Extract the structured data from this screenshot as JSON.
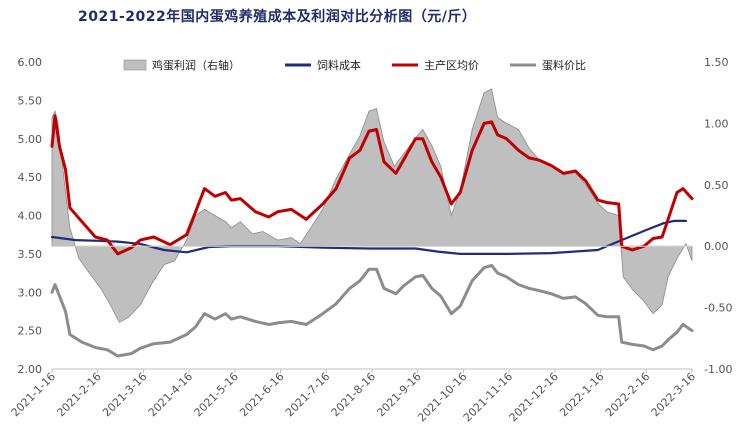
{
  "chart_data": {
    "type": "line",
    "title": "2021-2022年国内蛋鸡养殖成本及利润对比分析图（元/斤）",
    "x_labels": [
      "2021-1-16",
      "2021-2-16",
      "2021-3-16",
      "2021-4-16",
      "2021-5-16",
      "2021-6-16",
      "2021-7-16",
      "2021-8-16",
      "2021-9-16",
      "2021-10-16",
      "2021-11-16",
      "2021-12-16",
      "2022-1-16",
      "2022-2-16",
      "2022-3-16"
    ],
    "y_left": {
      "min": 2.0,
      "max": 6.0,
      "ticks": [
        "2.00",
        "2.50",
        "3.00",
        "3.50",
        "4.00",
        "4.50",
        "5.00",
        "5.50",
        "6.00"
      ]
    },
    "y_right": {
      "min": -1.0,
      "max": 1.5,
      "ticks": [
        "-1.00",
        "-0.50",
        "0.00",
        "0.50",
        "1.00",
        "1.50"
      ]
    },
    "grid": false,
    "legend_position": "top",
    "x_date_range": [
      "2021-01-16",
      "2022-03-20"
    ],
    "series": [
      {
        "name": "鸡蛋利润（右轴）",
        "axis": "right",
        "kind": "area",
        "color": "#bfbfbf",
        "stroke": "#8c8c8c",
        "points": [
          [
            "2021-01-16",
            1.05
          ],
          [
            "2021-01-18",
            1.1
          ],
          [
            "2021-01-20",
            1.0
          ],
          [
            "2021-01-24",
            0.55
          ],
          [
            "2021-01-28",
            0.15
          ],
          [
            "2021-02-03",
            -0.1
          ],
          [
            "2021-02-10",
            -0.22
          ],
          [
            "2021-02-18",
            -0.35
          ],
          [
            "2021-02-25",
            -0.5
          ],
          [
            "2021-03-02",
            -0.62
          ],
          [
            "2021-03-08",
            -0.58
          ],
          [
            "2021-03-16",
            -0.48
          ],
          [
            "2021-03-24",
            -0.3
          ],
          [
            "2021-04-01",
            -0.15
          ],
          [
            "2021-04-08",
            -0.12
          ],
          [
            "2021-04-16",
            0.05
          ],
          [
            "2021-04-22",
            0.25
          ],
          [
            "2021-04-28",
            0.3
          ],
          [
            "2021-05-05",
            0.25
          ],
          [
            "2021-05-12",
            0.2
          ],
          [
            "2021-05-16",
            0.15
          ],
          [
            "2021-05-22",
            0.2
          ],
          [
            "2021-05-30",
            0.1
          ],
          [
            "2021-06-06",
            0.12
          ],
          [
            "2021-06-16",
            0.05
          ],
          [
            "2021-06-25",
            0.07
          ],
          [
            "2021-07-01",
            0.02
          ],
          [
            "2021-07-08",
            0.15
          ],
          [
            "2021-07-16",
            0.3
          ],
          [
            "2021-07-25",
            0.55
          ],
          [
            "2021-08-03",
            0.75
          ],
          [
            "2021-08-10",
            0.9
          ],
          [
            "2021-08-16",
            1.1
          ],
          [
            "2021-08-21",
            1.12
          ],
          [
            "2021-08-26",
            0.85
          ],
          [
            "2021-09-02",
            0.65
          ],
          [
            "2021-09-08",
            0.75
          ],
          [
            "2021-09-16",
            0.88
          ],
          [
            "2021-09-21",
            0.95
          ],
          [
            "2021-09-27",
            0.82
          ],
          [
            "2021-10-03",
            0.65
          ],
          [
            "2021-10-10",
            0.25
          ],
          [
            "2021-10-16",
            0.45
          ],
          [
            "2021-10-24",
            0.95
          ],
          [
            "2021-11-01",
            1.25
          ],
          [
            "2021-11-06",
            1.28
          ],
          [
            "2021-11-10",
            1.05
          ],
          [
            "2021-11-16",
            1.0
          ],
          [
            "2021-11-24",
            0.95
          ],
          [
            "2021-12-01",
            0.8
          ],
          [
            "2021-12-08",
            0.7
          ],
          [
            "2021-12-16",
            0.65
          ],
          [
            "2021-12-24",
            0.58
          ],
          [
            "2022-01-01",
            0.6
          ],
          [
            "2022-01-08",
            0.5
          ],
          [
            "2022-01-16",
            0.35
          ],
          [
            "2022-01-22",
            0.28
          ],
          [
            "2022-01-30",
            0.25
          ],
          [
            "2022-02-02",
            -0.25
          ],
          [
            "2022-02-08",
            -0.35
          ],
          [
            "2022-02-16",
            -0.45
          ],
          [
            "2022-02-22",
            -0.55
          ],
          [
            "2022-02-28",
            -0.48
          ],
          [
            "2022-03-04",
            -0.25
          ],
          [
            "2022-03-10",
            -0.1
          ],
          [
            "2022-03-16",
            0.02
          ],
          [
            "2022-03-20",
            -0.12
          ]
        ]
      },
      {
        "name": "饲料成本",
        "axis": "left",
        "kind": "line",
        "color": "#1f2d7a",
        "points": [
          [
            "2021-01-16",
            3.72
          ],
          [
            "2021-02-01",
            3.68
          ],
          [
            "2021-02-16",
            3.67
          ],
          [
            "2021-03-01",
            3.66
          ],
          [
            "2021-03-16",
            3.63
          ],
          [
            "2021-04-01",
            3.55
          ],
          [
            "2021-04-16",
            3.52
          ],
          [
            "2021-05-01",
            3.59
          ],
          [
            "2021-05-16",
            3.6
          ],
          [
            "2021-06-16",
            3.6
          ],
          [
            "2021-07-16",
            3.58
          ],
          [
            "2021-08-16",
            3.57
          ],
          [
            "2021-09-16",
            3.57
          ],
          [
            "2021-10-01",
            3.53
          ],
          [
            "2021-10-16",
            3.5
          ],
          [
            "2021-11-16",
            3.5
          ],
          [
            "2021-12-16",
            3.51
          ],
          [
            "2022-01-16",
            3.55
          ],
          [
            "2022-02-16",
            3.8
          ],
          [
            "2022-03-01",
            3.9
          ],
          [
            "2022-03-08",
            3.93
          ],
          [
            "2022-03-16",
            3.93
          ]
        ]
      },
      {
        "name": "主产区均价",
        "axis": "left",
        "kind": "line",
        "color": "#c00000",
        "points": [
          [
            "2021-01-16",
            4.9
          ],
          [
            "2021-01-18",
            5.3
          ],
          [
            "2021-01-21",
            4.9
          ],
          [
            "2021-01-25",
            4.6
          ],
          [
            "2021-01-28",
            4.1
          ],
          [
            "2021-02-05",
            3.92
          ],
          [
            "2021-02-14",
            3.72
          ],
          [
            "2021-02-22",
            3.68
          ],
          [
            "2021-03-01",
            3.5
          ],
          [
            "2021-03-10",
            3.58
          ],
          [
            "2021-03-16",
            3.68
          ],
          [
            "2021-03-25",
            3.72
          ],
          [
            "2021-04-05",
            3.62
          ],
          [
            "2021-04-16",
            3.75
          ],
          [
            "2021-04-22",
            4.05
          ],
          [
            "2021-04-28",
            4.35
          ],
          [
            "2021-05-05",
            4.25
          ],
          [
            "2021-05-12",
            4.3
          ],
          [
            "2021-05-16",
            4.2
          ],
          [
            "2021-05-22",
            4.22
          ],
          [
            "2021-06-01",
            4.05
          ],
          [
            "2021-06-10",
            3.98
          ],
          [
            "2021-06-16",
            4.05
          ],
          [
            "2021-06-25",
            4.08
          ],
          [
            "2021-07-05",
            3.95
          ],
          [
            "2021-07-16",
            4.15
          ],
          [
            "2021-07-25",
            4.35
          ],
          [
            "2021-08-03",
            4.75
          ],
          [
            "2021-08-10",
            4.85
          ],
          [
            "2021-08-16",
            5.1
          ],
          [
            "2021-08-21",
            5.12
          ],
          [
            "2021-08-26",
            4.7
          ],
          [
            "2021-09-03",
            4.55
          ],
          [
            "2021-09-08",
            4.72
          ],
          [
            "2021-09-16",
            5.0
          ],
          [
            "2021-09-21",
            5.0
          ],
          [
            "2021-09-27",
            4.7
          ],
          [
            "2021-10-03",
            4.5
          ],
          [
            "2021-10-10",
            4.15
          ],
          [
            "2021-10-16",
            4.3
          ],
          [
            "2021-10-24",
            4.85
          ],
          [
            "2021-11-01",
            5.2
          ],
          [
            "2021-11-06",
            5.22
          ],
          [
            "2021-11-10",
            5.05
          ],
          [
            "2021-11-16",
            5.0
          ],
          [
            "2021-11-24",
            4.85
          ],
          [
            "2021-12-01",
            4.75
          ],
          [
            "2021-12-08",
            4.72
          ],
          [
            "2021-12-16",
            4.65
          ],
          [
            "2021-12-24",
            4.55
          ],
          [
            "2022-01-01",
            4.58
          ],
          [
            "2022-01-08",
            4.45
          ],
          [
            "2022-01-16",
            4.2
          ],
          [
            "2022-01-22",
            4.17
          ],
          [
            "2022-01-30",
            4.15
          ],
          [
            "2022-02-01",
            3.6
          ],
          [
            "2022-02-08",
            3.55
          ],
          [
            "2022-02-16",
            3.6
          ],
          [
            "2022-02-22",
            3.7
          ],
          [
            "2022-02-28",
            3.72
          ],
          [
            "2022-03-04",
            3.95
          ],
          [
            "2022-03-10",
            4.3
          ],
          [
            "2022-03-14",
            4.35
          ],
          [
            "2022-03-20",
            4.22
          ]
        ]
      },
      {
        "name": "蛋料价比",
        "axis": "left",
        "kind": "line",
        "color": "#8c8c8c",
        "points": [
          [
            "2021-01-16",
            3.0
          ],
          [
            "2021-01-18",
            3.1
          ],
          [
            "2021-01-21",
            2.95
          ],
          [
            "2021-01-25",
            2.75
          ],
          [
            "2021-01-28",
            2.45
          ],
          [
            "2021-02-05",
            2.35
          ],
          [
            "2021-02-14",
            2.28
          ],
          [
            "2021-02-22",
            2.25
          ],
          [
            "2021-03-01",
            2.17
          ],
          [
            "2021-03-10",
            2.2
          ],
          [
            "2021-03-16",
            2.27
          ],
          [
            "2021-03-25",
            2.33
          ],
          [
            "2021-04-05",
            2.35
          ],
          [
            "2021-04-16",
            2.45
          ],
          [
            "2021-04-22",
            2.55
          ],
          [
            "2021-04-28",
            2.72
          ],
          [
            "2021-05-05",
            2.65
          ],
          [
            "2021-05-12",
            2.72
          ],
          [
            "2021-05-16",
            2.65
          ],
          [
            "2021-05-22",
            2.68
          ],
          [
            "2021-06-01",
            2.62
          ],
          [
            "2021-06-10",
            2.58
          ],
          [
            "2021-06-16",
            2.6
          ],
          [
            "2021-06-25",
            2.62
          ],
          [
            "2021-07-05",
            2.58
          ],
          [
            "2021-07-16",
            2.72
          ],
          [
            "2021-07-25",
            2.85
          ],
          [
            "2021-08-03",
            3.05
          ],
          [
            "2021-08-10",
            3.15
          ],
          [
            "2021-08-16",
            3.3
          ],
          [
            "2021-08-21",
            3.3
          ],
          [
            "2021-08-26",
            3.05
          ],
          [
            "2021-09-03",
            2.98
          ],
          [
            "2021-09-08",
            3.08
          ],
          [
            "2021-09-16",
            3.2
          ],
          [
            "2021-09-21",
            3.22
          ],
          [
            "2021-09-27",
            3.05
          ],
          [
            "2021-10-03",
            2.95
          ],
          [
            "2021-10-10",
            2.72
          ],
          [
            "2021-10-16",
            2.82
          ],
          [
            "2021-10-24",
            3.15
          ],
          [
            "2021-11-01",
            3.32
          ],
          [
            "2021-11-06",
            3.35
          ],
          [
            "2021-11-10",
            3.25
          ],
          [
            "2021-11-16",
            3.2
          ],
          [
            "2021-11-24",
            3.1
          ],
          [
            "2021-12-01",
            3.05
          ],
          [
            "2021-12-08",
            3.02
          ],
          [
            "2021-12-16",
            2.98
          ],
          [
            "2021-12-24",
            2.92
          ],
          [
            "2022-01-01",
            2.94
          ],
          [
            "2022-01-08",
            2.85
          ],
          [
            "2022-01-16",
            2.7
          ],
          [
            "2022-01-22",
            2.68
          ],
          [
            "2022-01-30",
            2.68
          ],
          [
            "2022-02-01",
            2.35
          ],
          [
            "2022-02-08",
            2.32
          ],
          [
            "2022-02-16",
            2.3
          ],
          [
            "2022-02-22",
            2.25
          ],
          [
            "2022-02-28",
            2.3
          ],
          [
            "2022-03-04",
            2.38
          ],
          [
            "2022-03-10",
            2.48
          ],
          [
            "2022-03-14",
            2.58
          ],
          [
            "2022-03-20",
            2.5
          ]
        ]
      }
    ]
  }
}
